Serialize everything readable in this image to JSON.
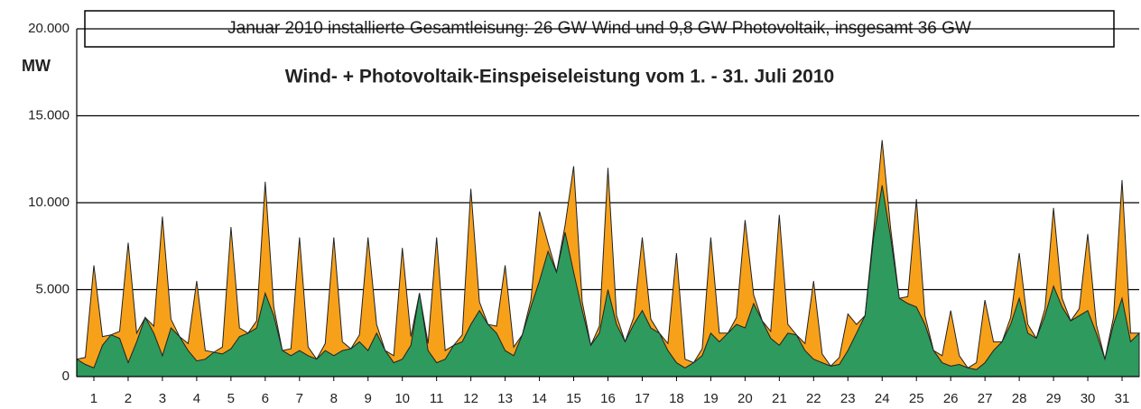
{
  "chart_data": {
    "type": "stacked-area",
    "note_box": "Januar 2010 installierte Gesamtleisung: 26 GW Wind und 9,8 GW Photovoltaik, insgesamt 36 GW",
    "title": "Wind- + Photovoltaik-Einspeiseleistung vom 1. - 31. Juli 2010",
    "y_label": "MW",
    "x": [
      0.5,
      0.75,
      1,
      1.25,
      1.5,
      1.75,
      2,
      2.25,
      2.5,
      2.75,
      3,
      3.25,
      3.5,
      3.75,
      4,
      4.25,
      4.5,
      4.75,
      5,
      5.25,
      5.5,
      5.75,
      6,
      6.25,
      6.5,
      6.75,
      7,
      7.25,
      7.5,
      7.75,
      8,
      8.25,
      8.5,
      8.75,
      9,
      9.25,
      9.5,
      9.75,
      10,
      10.25,
      10.5,
      10.75,
      11,
      11.25,
      11.5,
      11.75,
      12,
      12.25,
      12.5,
      12.75,
      13,
      13.25,
      13.5,
      13.75,
      14,
      14.25,
      14.5,
      14.75,
      15,
      15.25,
      15.5,
      15.75,
      16,
      16.25,
      16.5,
      16.75,
      17,
      17.25,
      17.5,
      17.75,
      18,
      18.25,
      18.5,
      18.75,
      19,
      19.25,
      19.5,
      19.75,
      20,
      20.25,
      20.5,
      20.75,
      21,
      21.25,
      21.5,
      21.75,
      22,
      22.25,
      22.5,
      22.75,
      23,
      23.25,
      23.5,
      23.75,
      24,
      24.25,
      24.5,
      24.75,
      25,
      25.25,
      25.5,
      25.75,
      26,
      26.25,
      26.5,
      26.75,
      27,
      27.25,
      27.5,
      27.75,
      28,
      28.25,
      28.5,
      28.75,
      29,
      29.25,
      29.5,
      29.75,
      30,
      30.25,
      30.5,
      30.75,
      31,
      31.25,
      31.5
    ],
    "series": [
      {
        "color": "#2e9a5e",
        "values": [
          1000,
          700,
          500,
          1800,
          2400,
          2200,
          800,
          2000,
          3400,
          2500,
          1200,
          2800,
          2300,
          1500,
          900,
          1000,
          1400,
          1300,
          1600,
          2300,
          2500,
          2800,
          4800,
          3500,
          1500,
          1200,
          1500,
          1200,
          1000,
          1500,
          1200,
          1500,
          1600,
          2000,
          1500,
          2500,
          1500,
          800,
          1000,
          1800,
          4800,
          1500,
          800,
          1000,
          1800,
          2000,
          3000,
          3800,
          3000,
          2500,
          1500,
          1200,
          2400,
          4000,
          5500,
          7200,
          6000,
          8300,
          6000,
          3800,
          1800,
          2500,
          5000,
          3000,
          2000,
          3000,
          3800,
          2800,
          2500,
          1500,
          800,
          500,
          800,
          1200,
          2500,
          2000,
          2500,
          3000,
          2800,
          4200,
          3200,
          2200,
          1800,
          2500,
          2400,
          1500,
          1000,
          800,
          600,
          700,
          1500,
          2500,
          3500,
          8000,
          11000,
          8000,
          4500,
          4200,
          4000,
          3000,
          1500,
          800,
          600,
          700,
          500,
          400,
          800,
          1500,
          2000,
          3000,
          4500,
          2500,
          2200,
          3500,
          5200,
          4000,
          3200,
          3500,
          3800,
          2500,
          1000,
          3000,
          4500,
          2000,
          2500
        ]
      },
      {
        "color": "#f7a11a",
        "values": [
          0,
          400,
          5900,
          500,
          0,
          400,
          6900,
          500,
          0,
          400,
          8000,
          500,
          0,
          400,
          4600,
          500,
          0,
          400,
          7000,
          500,
          0,
          400,
          6400,
          500,
          0,
          400,
          6500,
          500,
          0,
          400,
          6800,
          500,
          0,
          400,
          6500,
          500,
          0,
          400,
          6400,
          500,
          0,
          400,
          7200,
          500,
          0,
          400,
          7800,
          500,
          0,
          400,
          4900,
          500,
          0,
          400,
          4000,
          500,
          0,
          400,
          6100,
          500,
          0,
          400,
          7000,
          500,
          0,
          400,
          4200,
          500,
          0,
          400,
          6300,
          500,
          0,
          400,
          5500,
          500,
          0,
          400,
          6200,
          500,
          0,
          400,
          7500,
          500,
          0,
          400,
          4500,
          500,
          0,
          400,
          2100,
          500,
          0,
          400,
          2600,
          500,
          0,
          400,
          6200,
          500,
          0,
          400,
          3200,
          500,
          0,
          400,
          3600,
          500,
          0,
          400,
          2600,
          500,
          0,
          400,
          4500,
          500,
          0,
          400,
          4400,
          500,
          0,
          400,
          6800,
          500,
          0
        ]
      }
    ],
    "xlim": [
      0.5,
      31.5
    ],
    "xticks": [
      1,
      2,
      3,
      4,
      5,
      6,
      7,
      8,
      9,
      10,
      11,
      12,
      13,
      14,
      15,
      16,
      17,
      18,
      19,
      20,
      21,
      22,
      23,
      24,
      25,
      26,
      27,
      28,
      29,
      30,
      31
    ],
    "ylim": [
      0,
      20000
    ],
    "yticks": [
      0,
      {
        "value": 5000,
        "label": "5.000"
      },
      {
        "value": 10000,
        "label": "10.000"
      },
      {
        "value": 15000,
        "label": "15.000"
      },
      {
        "value": 20000,
        "label": "20.000"
      }
    ],
    "grid": true
  }
}
